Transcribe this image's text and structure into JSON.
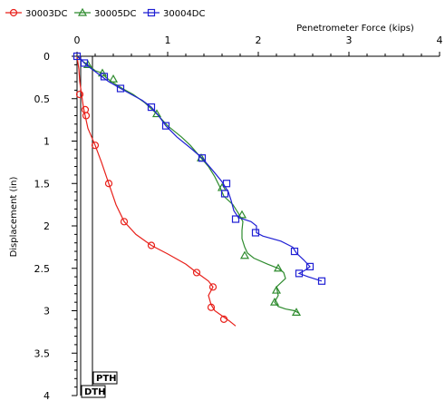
{
  "chart_data": {
    "type": "line",
    "xlabel": "Penetrometer Force (kips)",
    "ylabel": "Displacement (in)",
    "xlim": [
      0,
      4
    ],
    "ylim": [
      0,
      4
    ],
    "x_ticks": [
      "0",
      "1",
      "2",
      "3",
      "4"
    ],
    "y_ticks": [
      "0",
      "0.5",
      "1",
      "1.5",
      "2",
      "2.5",
      "3",
      "3.5",
      "4"
    ],
    "y_inverted": true,
    "x_axis_position": "top",
    "grid": false,
    "legend_position": "top-left",
    "series": [
      {
        "name": "30003DC",
        "color": "#e8201a",
        "marker": "circle",
        "points": [
          [
            0.0,
            0.0
          ],
          [
            0.02,
            0.15
          ],
          [
            0.03,
            0.3
          ],
          [
            0.05,
            0.45
          ],
          [
            0.07,
            0.6
          ],
          [
            0.09,
            0.7
          ],
          [
            0.12,
            0.85
          ],
          [
            0.2,
            1.05
          ],
          [
            0.27,
            1.25
          ],
          [
            0.35,
            1.5
          ],
          [
            0.43,
            1.75
          ],
          [
            0.52,
            1.95
          ],
          [
            0.65,
            2.1
          ],
          [
            0.82,
            2.23
          ],
          [
            1.0,
            2.33
          ],
          [
            1.2,
            2.45
          ],
          [
            1.32,
            2.55
          ],
          [
            1.45,
            2.65
          ],
          [
            1.5,
            2.72
          ],
          [
            1.45,
            2.82
          ],
          [
            1.48,
            2.93
          ],
          [
            1.52,
            3.0
          ],
          [
            1.6,
            3.06
          ],
          [
            1.68,
            3.12
          ],
          [
            1.75,
            3.18
          ]
        ],
        "markers": [
          [
            0.03,
            0.45
          ],
          [
            0.09,
            0.63
          ],
          [
            0.1,
            0.7
          ],
          [
            0.2,
            1.05
          ],
          [
            0.35,
            1.5
          ],
          [
            0.52,
            1.95
          ],
          [
            0.82,
            2.23
          ],
          [
            1.32,
            2.55
          ],
          [
            1.5,
            2.72
          ],
          [
            1.48,
            2.96
          ],
          [
            1.62,
            3.1
          ]
        ]
      },
      {
        "name": "30005DC",
        "color": "#2e8b2e",
        "marker": "triangle",
        "points": [
          [
            0.0,
            0.0
          ],
          [
            0.05,
            0.05
          ],
          [
            0.12,
            0.1
          ],
          [
            0.2,
            0.17
          ],
          [
            0.28,
            0.2
          ],
          [
            0.32,
            0.25
          ],
          [
            0.38,
            0.3
          ],
          [
            0.5,
            0.38
          ],
          [
            0.62,
            0.45
          ],
          [
            0.75,
            0.55
          ],
          [
            0.88,
            0.68
          ],
          [
            1.0,
            0.82
          ],
          [
            1.15,
            0.95
          ],
          [
            1.25,
            1.05
          ],
          [
            1.37,
            1.2
          ],
          [
            1.45,
            1.3
          ],
          [
            1.52,
            1.42
          ],
          [
            1.58,
            1.55
          ],
          [
            1.62,
            1.65
          ],
          [
            1.72,
            1.75
          ],
          [
            1.78,
            1.85
          ],
          [
            1.83,
            1.95
          ],
          [
            1.82,
            2.05
          ],
          [
            1.82,
            2.15
          ],
          [
            1.85,
            2.25
          ],
          [
            1.88,
            2.32
          ],
          [
            1.95,
            2.38
          ],
          [
            2.1,
            2.45
          ],
          [
            2.22,
            2.5
          ],
          [
            2.28,
            2.55
          ],
          [
            2.3,
            2.62
          ],
          [
            2.2,
            2.72
          ],
          [
            2.22,
            2.82
          ],
          [
            2.18,
            2.9
          ],
          [
            2.22,
            2.95
          ],
          [
            2.3,
            2.98
          ],
          [
            2.4,
            3.0
          ],
          [
            2.45,
            3.03
          ]
        ],
        "markers": [
          [
            0.12,
            0.1
          ],
          [
            0.28,
            0.2
          ],
          [
            0.4,
            0.27
          ],
          [
            0.88,
            0.68
          ],
          [
            1.37,
            1.2
          ],
          [
            1.6,
            1.55
          ],
          [
            1.82,
            1.87
          ],
          [
            1.85,
            2.35
          ],
          [
            2.22,
            2.5
          ],
          [
            2.2,
            2.76
          ],
          [
            2.18,
            2.9
          ],
          [
            2.42,
            3.02
          ]
        ]
      },
      {
        "name": "30004DC",
        "color": "#1f1fd4",
        "marker": "square",
        "points": [
          [
            0.0,
            0.0
          ],
          [
            0.04,
            0.03
          ],
          [
            0.08,
            0.08
          ],
          [
            0.15,
            0.14
          ],
          [
            0.25,
            0.22
          ],
          [
            0.35,
            0.3
          ],
          [
            0.48,
            0.38
          ],
          [
            0.6,
            0.45
          ],
          [
            0.72,
            0.52
          ],
          [
            0.82,
            0.6
          ],
          [
            0.9,
            0.7
          ],
          [
            0.98,
            0.82
          ],
          [
            1.1,
            0.95
          ],
          [
            1.25,
            1.08
          ],
          [
            1.38,
            1.2
          ],
          [
            1.5,
            1.35
          ],
          [
            1.6,
            1.48
          ],
          [
            1.67,
            1.6
          ],
          [
            1.7,
            1.7
          ],
          [
            1.73,
            1.82
          ],
          [
            1.78,
            1.9
          ],
          [
            1.92,
            1.95
          ],
          [
            1.98,
            2.0
          ],
          [
            1.98,
            2.08
          ],
          [
            2.05,
            2.12
          ],
          [
            2.25,
            2.18
          ],
          [
            2.38,
            2.25
          ],
          [
            2.42,
            2.32
          ],
          [
            2.5,
            2.4
          ],
          [
            2.57,
            2.48
          ],
          [
            2.52,
            2.52
          ],
          [
            2.45,
            2.56
          ],
          [
            2.55,
            2.6
          ],
          [
            2.7,
            2.65
          ]
        ],
        "markers": [
          [
            0.0,
            0.0
          ],
          [
            0.08,
            0.08
          ],
          [
            0.3,
            0.24
          ],
          [
            0.48,
            0.38
          ],
          [
            0.82,
            0.6
          ],
          [
            0.98,
            0.82
          ],
          [
            1.38,
            1.2
          ],
          [
            1.65,
            1.5
          ],
          [
            1.63,
            1.62
          ],
          [
            1.75,
            1.92
          ],
          [
            1.97,
            2.08
          ],
          [
            2.4,
            2.3
          ],
          [
            2.57,
            2.48
          ],
          [
            2.45,
            2.56
          ],
          [
            2.7,
            2.65
          ]
        ]
      }
    ],
    "annotations": [
      {
        "label": "PTH",
        "x": 0.17
      },
      {
        "label": "DTH",
        "x": 0.04
      }
    ]
  }
}
